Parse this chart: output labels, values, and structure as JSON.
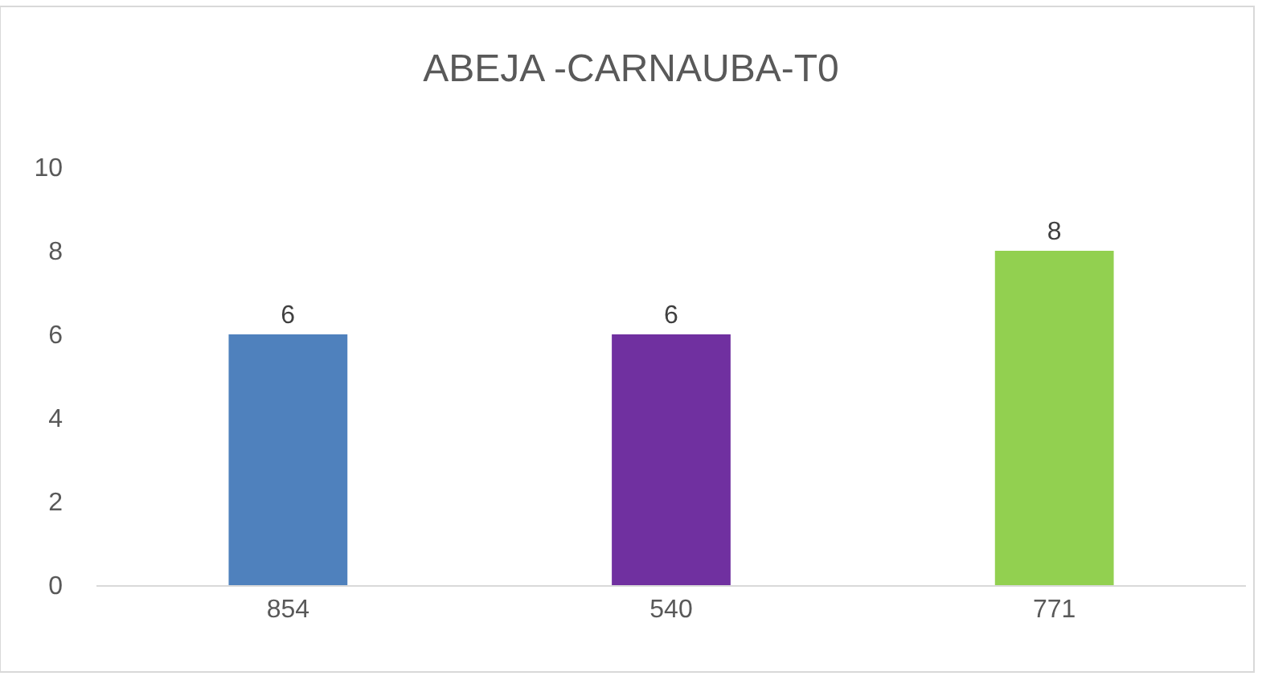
{
  "chart_data": {
    "type": "bar",
    "title": "ABEJA -CARNAUBA-T0",
    "categories": [
      "854",
      "540",
      "771"
    ],
    "values": [
      6,
      6,
      8
    ],
    "colors": [
      "#4f81bd",
      "#7030a0",
      "#92d050"
    ],
    "ylim": [
      0,
      10
    ],
    "yticks": [
      0,
      2,
      4,
      6,
      8,
      10
    ],
    "grid": false,
    "data_labels": true,
    "legend": false
  }
}
